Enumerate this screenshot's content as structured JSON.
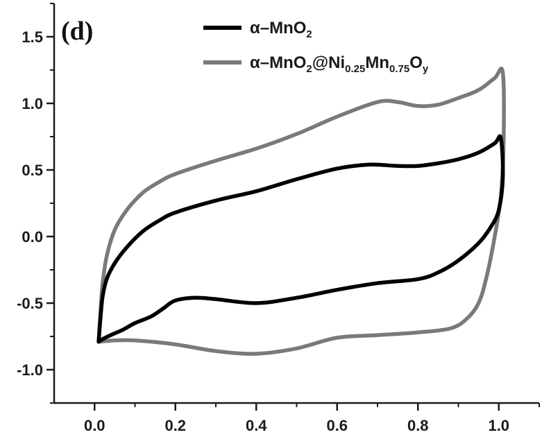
{
  "chart_data": {
    "type": "line",
    "title": "",
    "xlabel": "",
    "ylabel": "",
    "panel_label": "(d)",
    "xlim": [
      -0.1,
      1.1
    ],
    "ylim": [
      -1.25,
      1.75
    ],
    "x_ticks": [
      0.0,
      0.2,
      0.4,
      0.6,
      0.8,
      1.0
    ],
    "x_tick_labels": [
      "0.0",
      "0.2",
      "0.4",
      "0.6",
      "0.8",
      "1.0"
    ],
    "y_ticks": [
      -1.0,
      -0.5,
      0.0,
      0.5,
      1.0,
      1.5
    ],
    "y_tick_labels": [
      "-1.0",
      "-0.5",
      "0.0",
      "0.5",
      "1.0",
      "1.5"
    ],
    "grid": false,
    "legend_position": "top-right",
    "series": [
      {
        "name": "α–MnO2",
        "name_parts": [
          {
            "text": "α–MnO",
            "sub": false
          },
          {
            "text": "2",
            "sub": true
          }
        ],
        "color": "#000000",
        "points": [
          [
            0.01,
            -0.79
          ],
          [
            0.015,
            -0.6
          ],
          [
            0.02,
            -0.45
          ],
          [
            0.03,
            -0.32
          ],
          [
            0.05,
            -0.2
          ],
          [
            0.08,
            -0.08
          ],
          [
            0.12,
            0.04
          ],
          [
            0.16,
            0.12
          ],
          [
            0.2,
            0.18
          ],
          [
            0.3,
            0.27
          ],
          [
            0.4,
            0.34
          ],
          [
            0.5,
            0.43
          ],
          [
            0.6,
            0.51
          ],
          [
            0.68,
            0.54
          ],
          [
            0.75,
            0.53
          ],
          [
            0.8,
            0.53
          ],
          [
            0.85,
            0.55
          ],
          [
            0.9,
            0.58
          ],
          [
            0.95,
            0.63
          ],
          [
            0.99,
            0.7
          ],
          [
            1.005,
            0.74
          ],
          [
            1.01,
            0.45
          ],
          [
            1.0,
            0.2
          ],
          [
            0.98,
            0.07
          ],
          [
            0.95,
            -0.05
          ],
          [
            0.9,
            -0.18
          ],
          [
            0.85,
            -0.27
          ],
          [
            0.8,
            -0.32
          ],
          [
            0.7,
            -0.35
          ],
          [
            0.6,
            -0.4
          ],
          [
            0.5,
            -0.46
          ],
          [
            0.4,
            -0.5
          ],
          [
            0.3,
            -0.47
          ],
          [
            0.25,
            -0.46
          ],
          [
            0.2,
            -0.48
          ],
          [
            0.17,
            -0.54
          ],
          [
            0.14,
            -0.6
          ],
          [
            0.1,
            -0.65
          ],
          [
            0.07,
            -0.7
          ],
          [
            0.04,
            -0.74
          ],
          [
            0.02,
            -0.77
          ],
          [
            0.01,
            -0.79
          ]
        ]
      },
      {
        "name": "α–MnO2@Ni0.25Mn0.75Oy",
        "name_parts": [
          {
            "text": "α–MnO",
            "sub": false
          },
          {
            "text": "2",
            "sub": true
          },
          {
            "text": "@Ni",
            "sub": false
          },
          {
            "text": "0.25",
            "sub": true
          },
          {
            "text": "Mn",
            "sub": false
          },
          {
            "text": "0.75",
            "sub": true
          },
          {
            "text": "O",
            "sub": false
          },
          {
            "text": "y",
            "sub": true
          }
        ],
        "color": "#7a7a7a",
        "points": [
          [
            0.01,
            -0.79
          ],
          [
            0.015,
            -0.55
          ],
          [
            0.02,
            -0.35
          ],
          [
            0.03,
            -0.15
          ],
          [
            0.05,
            0.05
          ],
          [
            0.08,
            0.2
          ],
          [
            0.12,
            0.33
          ],
          [
            0.16,
            0.41
          ],
          [
            0.2,
            0.47
          ],
          [
            0.3,
            0.57
          ],
          [
            0.4,
            0.66
          ],
          [
            0.5,
            0.77
          ],
          [
            0.6,
            0.9
          ],
          [
            0.7,
            1.01
          ],
          [
            0.75,
            1.01
          ],
          [
            0.8,
            0.98
          ],
          [
            0.85,
            0.99
          ],
          [
            0.9,
            1.04
          ],
          [
            0.95,
            1.1
          ],
          [
            0.99,
            1.19
          ],
          [
            1.01,
            1.23
          ],
          [
            1.012,
            0.7
          ],
          [
            1.005,
            0.3
          ],
          [
            0.99,
            0.0
          ],
          [
            0.97,
            -0.3
          ],
          [
            0.95,
            -0.5
          ],
          [
            0.92,
            -0.62
          ],
          [
            0.88,
            -0.69
          ],
          [
            0.8,
            -0.72
          ],
          [
            0.7,
            -0.74
          ],
          [
            0.6,
            -0.76
          ],
          [
            0.5,
            -0.84
          ],
          [
            0.4,
            -0.88
          ],
          [
            0.3,
            -0.86
          ],
          [
            0.2,
            -0.81
          ],
          [
            0.1,
            -0.78
          ],
          [
            0.05,
            -0.78
          ],
          [
            0.01,
            -0.79
          ]
        ]
      }
    ]
  }
}
